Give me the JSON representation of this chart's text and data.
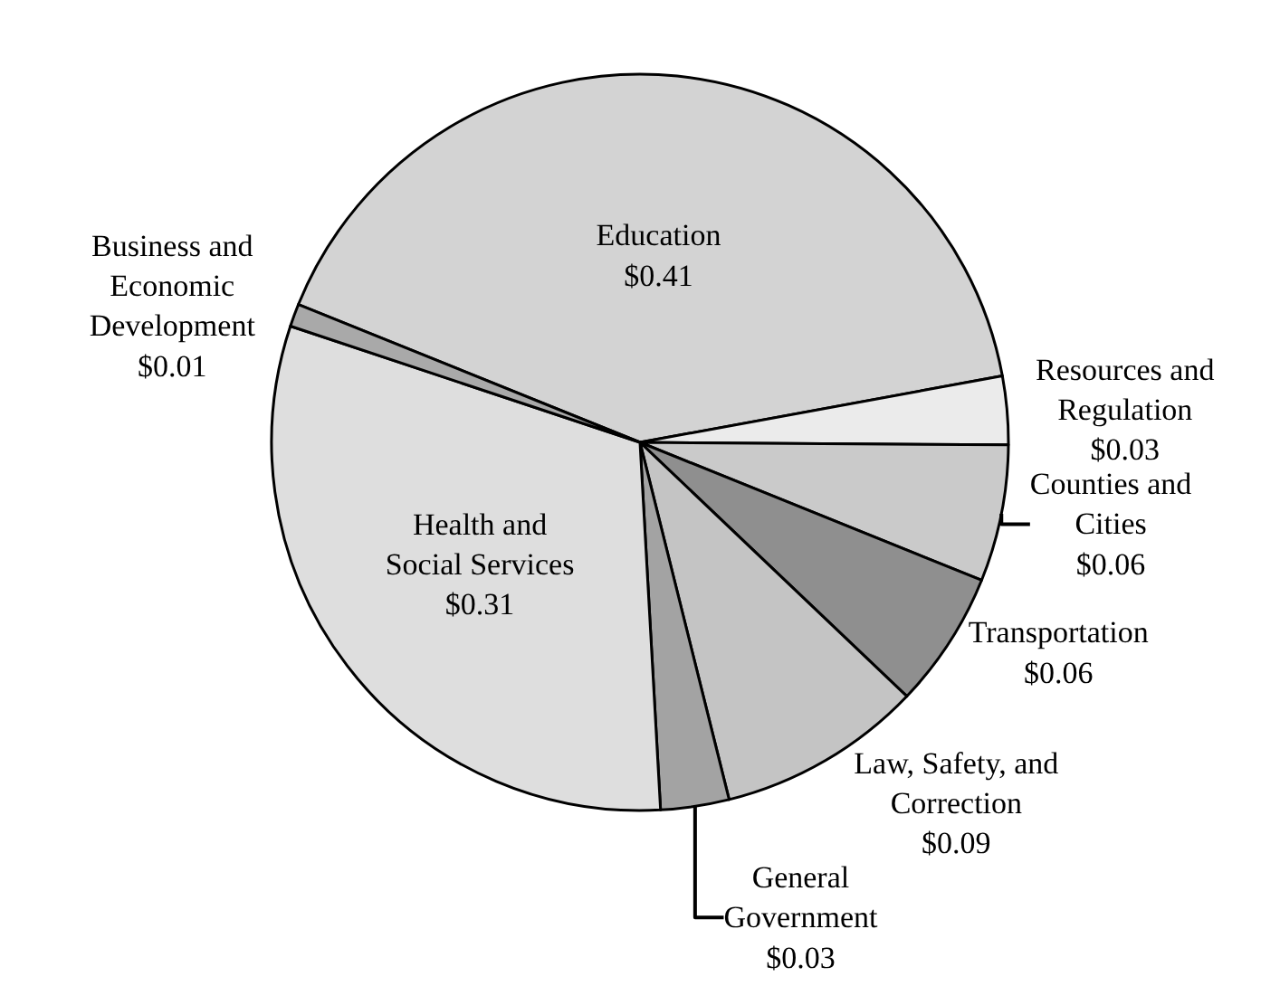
{
  "chart_data": {
    "type": "pie",
    "categories": [
      "Education",
      "Resources and Regulation",
      "Counties and Cities",
      "Transportation",
      "Law, Safety, and Correction",
      "General Government",
      "Health and Social Services",
      "Business and Economic Development"
    ],
    "values": [
      0.41,
      0.03,
      0.06,
      0.06,
      0.09,
      0.03,
      0.31,
      0.01
    ],
    "value_labels": [
      "$0.41",
      "$0.03",
      "$0.06",
      "$0.06",
      "$0.09",
      "$0.03",
      "$0.31",
      "$0.01"
    ],
    "colors": [
      "#d3d3d3",
      "#ebebeb",
      "#cacaca",
      "#8f8f8f",
      "#c4c4c4",
      "#a3a3a3",
      "#dedede",
      "#a9a9a9"
    ],
    "legend": false
  }
}
